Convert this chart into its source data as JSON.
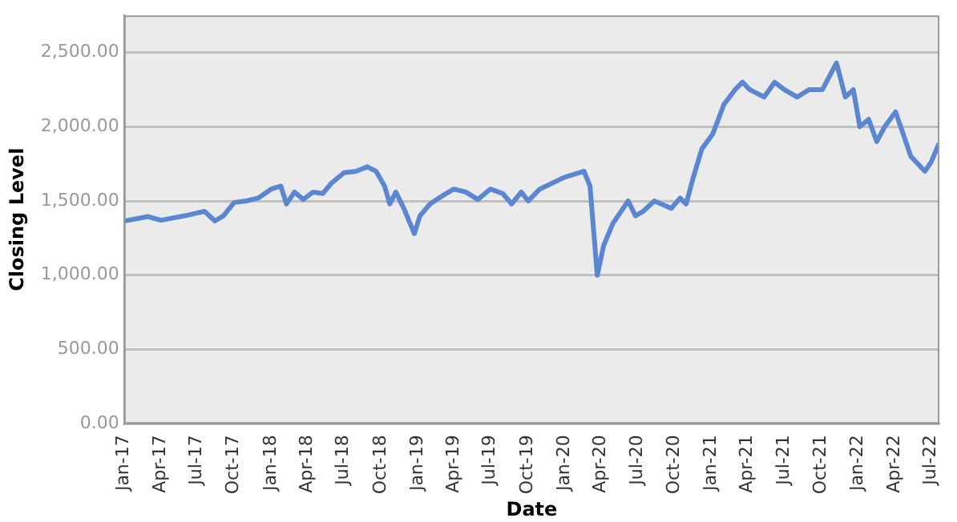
{
  "chart_data": {
    "type": "line",
    "xlabel": "Date",
    "ylabel": "Closing Level",
    "x": [
      "2017-01-03",
      "2017-02-01",
      "2017-03-01",
      "2017-04-03",
      "2017-05-01",
      "2017-06-01",
      "2017-07-03",
      "2017-07-20",
      "2017-08-15",
      "2017-09-05",
      "2017-10-02",
      "2017-11-01",
      "2017-12-01",
      "2018-01-02",
      "2018-01-26",
      "2018-02-09",
      "2018-03-01",
      "2018-03-23",
      "2018-04-16",
      "2018-05-10",
      "2018-06-01",
      "2018-07-02",
      "2018-08-01",
      "2018-08-29",
      "2018-09-20",
      "2018-10-11",
      "2018-10-24",
      "2018-11-08",
      "2018-11-28",
      "2018-12-24",
      "2019-01-07",
      "2019-02-01",
      "2019-03-01",
      "2019-04-01",
      "2019-05-01",
      "2019-05-31",
      "2019-07-01",
      "2019-08-01",
      "2019-08-23",
      "2019-09-16",
      "2019-10-03",
      "2019-11-01",
      "2019-12-02",
      "2020-01-02",
      "2020-02-19",
      "2020-03-05",
      "2020-03-23",
      "2020-04-08",
      "2020-05-01",
      "2020-06-08",
      "2020-06-26",
      "2020-07-15",
      "2020-08-12",
      "2020-09-23",
      "2020-10-15",
      "2020-10-30",
      "2020-11-16",
      "2020-12-08",
      "2021-01-04",
      "2021-02-01",
      "2021-03-01",
      "2021-03-19",
      "2021-04-06",
      "2021-05-12",
      "2021-06-07",
      "2021-07-01",
      "2021-08-02",
      "2021-09-01",
      "2021-10-04",
      "2021-11-08",
      "2021-11-30",
      "2021-12-20",
      "2022-01-05",
      "2022-01-27",
      "2022-02-16",
      "2022-03-08",
      "2022-04-04",
      "2022-05-12",
      "2022-06-16",
      "2022-07-01",
      "2022-07-20"
    ],
    "values": [
      1366,
      1380,
      1395,
      1370,
      1385,
      1400,
      1420,
      1430,
      1365,
      1400,
      1490,
      1500,
      1520,
      1580,
      1600,
      1480,
      1560,
      1510,
      1560,
      1550,
      1620,
      1690,
      1700,
      1730,
      1700,
      1600,
      1480,
      1560,
      1450,
      1280,
      1400,
      1480,
      1530,
      1580,
      1560,
      1510,
      1580,
      1550,
      1480,
      1560,
      1500,
      1580,
      1620,
      1660,
      1700,
      1600,
      1000,
      1200,
      1350,
      1500,
      1400,
      1430,
      1500,
      1450,
      1520,
      1480,
      1650,
      1850,
      1950,
      2150,
      2250,
      2300,
      2250,
      2200,
      2300,
      2250,
      2200,
      2250,
      2250,
      2430,
      2200,
      2250,
      2000,
      2050,
      1900,
      2000,
      2100,
      1800,
      1700,
      1760,
      1880
    ],
    "color": "#5b87d0",
    "xlim": [
      "2017-01-01",
      "2022-07-22"
    ],
    "xticks": [
      {
        "value": "2017-01-01",
        "label": "Jan-17"
      },
      {
        "value": "2017-04-01",
        "label": "Apr-17"
      },
      {
        "value": "2017-07-01",
        "label": "Jul-17"
      },
      {
        "value": "2017-10-01",
        "label": "Oct-17"
      },
      {
        "value": "2018-01-01",
        "label": "Jan-18"
      },
      {
        "value": "2018-04-01",
        "label": "Apr-18"
      },
      {
        "value": "2018-07-01",
        "label": "Jul-18"
      },
      {
        "value": "2018-10-01",
        "label": "Oct-18"
      },
      {
        "value": "2019-01-01",
        "label": "Jan-19"
      },
      {
        "value": "2019-04-01",
        "label": "Apr-19"
      },
      {
        "value": "2019-07-01",
        "label": "Jul-19"
      },
      {
        "value": "2019-10-01",
        "label": "Oct-19"
      },
      {
        "value": "2020-01-01",
        "label": "Jan-20"
      },
      {
        "value": "2020-04-01",
        "label": "Apr-20"
      },
      {
        "value": "2020-07-01",
        "label": "Jul-20"
      },
      {
        "value": "2020-10-01",
        "label": "Oct-20"
      },
      {
        "value": "2021-01-01",
        "label": "Jan-21"
      },
      {
        "value": "2021-04-01",
        "label": "Apr-21"
      },
      {
        "value": "2021-07-01",
        "label": "Jul-21"
      },
      {
        "value": "2021-10-01",
        "label": "Oct-21"
      },
      {
        "value": "2022-01-01",
        "label": "Jan-22"
      },
      {
        "value": "2022-04-01",
        "label": "Apr-22"
      },
      {
        "value": "2022-07-01",
        "label": "Jul-22"
      }
    ],
    "ylim": [
      0,
      2750
    ],
    "yticks": [
      {
        "value": 0,
        "label": "0.00"
      },
      {
        "value": 500,
        "label": "500.00"
      },
      {
        "value": 1000,
        "label": "1,000.00"
      },
      {
        "value": 1500,
        "label": "1,500.00"
      },
      {
        "value": 2000,
        "label": "2,000.00"
      },
      {
        "value": 2500,
        "label": "2,500.00"
      }
    ],
    "grid": "y",
    "legend": false,
    "marker": "none",
    "line_style": "solid"
  }
}
